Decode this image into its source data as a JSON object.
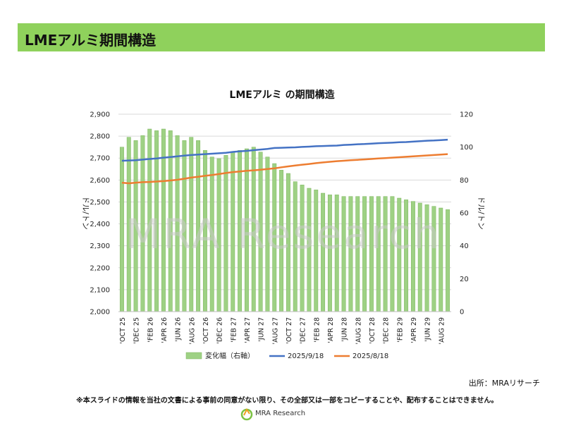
{
  "header": {
    "title": "LMEアルミ期間構造"
  },
  "source": "出所：MRAリサーチ",
  "disclaimer": "※本スライドの情報を当社の文書による事前の同意がない限り、その全部又は一部をコピーすることや、配布することはできません。",
  "watermark": "MRA Research",
  "logo": {
    "text": "MRA Research"
  },
  "chart_data": {
    "type": "bar",
    "title": "LMEアルミ の期間構造",
    "ylabel_left": "ドル/トン",
    "ylabel_right": "ドル/トン",
    "ylim_left": [
      2000,
      2900
    ],
    "yticks_left": [
      "2,000",
      "2,100",
      "2,200",
      "2,300",
      "2,400",
      "2,500",
      "2,600",
      "2,700",
      "2,800",
      "2,900"
    ],
    "ylim_right": [
      0,
      120
    ],
    "yticks_right": [
      "0",
      "20",
      "40",
      "60",
      "80",
      "100",
      "120"
    ],
    "xticks": [
      "'OCT 25",
      "'DEC 25",
      "'FEB 26",
      "'APR 26",
      "'JUN 26",
      "'AUG 26",
      "'OCT 26",
      "'DEC 26",
      "'FEB 27",
      "'APR 27",
      "'JUN 27",
      "'AUG 27",
      "'OCT 27",
      "'DEC 27",
      "'FEB 28",
      "'APR 28",
      "'JUN 28",
      "'AUG 28",
      "'OCT 28",
      "'DEC 28",
      "'FEB 29",
      "'APR 29",
      "'JUN 29",
      "'AUG 29"
    ],
    "legend": [
      "変化幅（右軸）",
      "2025/9/18",
      "2025/8/18"
    ],
    "legend_position": "bottom",
    "colors": {
      "bars": "#9ed184",
      "bars_edge": "#7cb55e",
      "series1": "#4472c4",
      "series2": "#ed7d31",
      "grid": "#d9d9d9",
      "watermark": "#c8c8c8"
    },
    "bars": [
      100,
      106,
      104,
      107,
      111,
      110,
      111,
      110,
      107,
      104,
      106,
      104,
      98,
      94,
      93,
      95,
      97,
      98,
      99,
      100,
      97,
      94,
      90,
      86,
      84,
      79,
      77,
      75,
      74,
      72,
      71,
      71,
      70,
      70,
      70,
      70,
      70,
      70,
      70,
      70,
      69,
      68,
      67,
      66,
      65,
      64,
      63,
      62
    ],
    "series": [
      {
        "name": "2025/9/18",
        "values": [
          2688,
          2689,
          2690,
          2693,
          2696,
          2698,
          2702,
          2705,
          2708,
          2711,
          2714,
          2716,
          2718,
          2720,
          2722,
          2724,
          2728,
          2731,
          2733,
          2736,
          2739,
          2742,
          2746,
          2747,
          2748,
          2749,
          2751,
          2752,
          2754,
          2755,
          2756,
          2757,
          2760,
          2761,
          2763,
          2764,
          2766,
          2768,
          2769,
          2770,
          2772,
          2773,
          2775,
          2777,
          2779,
          2780,
          2782,
          2784
        ]
      },
      {
        "name": "2025/8/18",
        "values": [
          2588,
          2585,
          2588,
          2590,
          2591,
          2593,
          2595,
          2598,
          2601,
          2606,
          2611,
          2615,
          2619,
          2623,
          2627,
          2632,
          2636,
          2639,
          2642,
          2644,
          2647,
          2650,
          2653,
          2658,
          2662,
          2666,
          2670,
          2673,
          2677,
          2680,
          2683,
          2686,
          2688,
          2690,
          2692,
          2694,
          2696,
          2698,
          2700,
          2702,
          2704,
          2706,
          2708,
          2710,
          2712,
          2714,
          2716,
          2718
        ]
      }
    ]
  }
}
